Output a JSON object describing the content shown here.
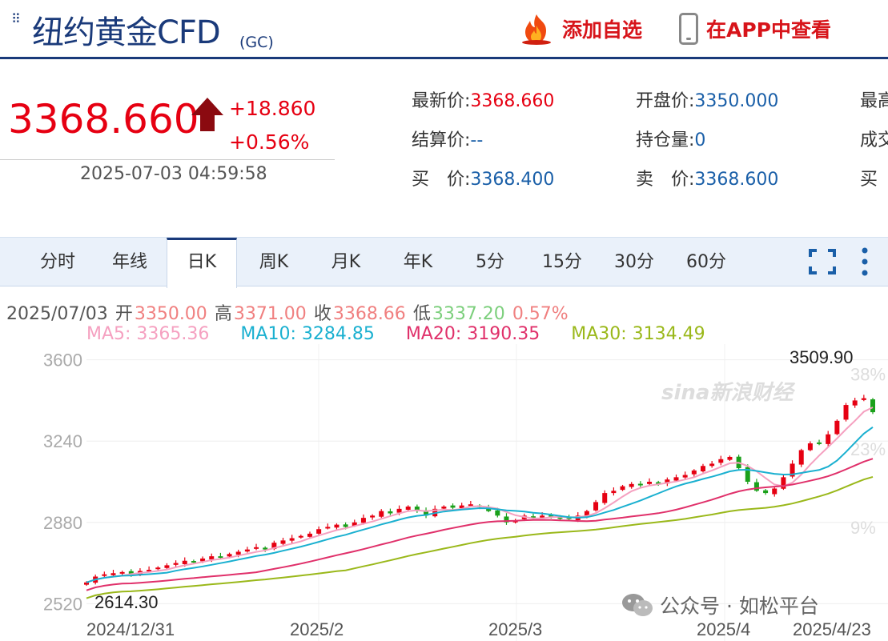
{
  "header": {
    "title": "纽约黄金CFD",
    "title_sub": "(GC)",
    "fav_label": "添加自选",
    "app_label": "在APP中查看"
  },
  "quote": {
    "price": "3368.660",
    "change": "+18.860",
    "change_pct": "+0.56%",
    "timestamp": "2025-07-03 04:59:58",
    "fields": [
      {
        "label": "最新价:",
        "value": "3368.660",
        "red": true
      },
      {
        "label": "开盘价:",
        "value": "3350.000",
        "red": false
      },
      {
        "label": "最高",
        "value": "",
        "red": false
      },
      {
        "label": "结算价:",
        "value": "--",
        "red": false
      },
      {
        "label": "持仓量:",
        "value": "0",
        "red": false
      },
      {
        "label": "成交",
        "value": "",
        "red": false
      },
      {
        "label": "买　价:",
        "value": "3368.400",
        "red": false
      },
      {
        "label": "卖　价:",
        "value": "3368.600",
        "red": false
      },
      {
        "label": "买",
        "value": "",
        "red": false
      }
    ]
  },
  "tabs": [
    "分时",
    "年线",
    "日K",
    "周K",
    "月K",
    "年K",
    "5分",
    "15分",
    "30分",
    "60分"
  ],
  "active_tab": 2,
  "ohlc": {
    "date": "2025/07/03",
    "open_label": "开",
    "open": "3350.00",
    "high_label": "高",
    "high": "3371.00",
    "close_label": "收",
    "close": "3368.66",
    "low_label": "低",
    "low": "3337.20",
    "pct": "0.57%"
  },
  "ma": {
    "ma5": "MA5: 3365.36",
    "ma10": "MA10: 3284.85",
    "ma20": "MA20: 3190.35",
    "ma30": "MA30: 3134.49"
  },
  "watermark": "sina新浪财经",
  "wechat": "公众号 · 如松平台",
  "colors": {
    "up": "#e60012",
    "down": "#1aa01a",
    "ma5": "#f5a0c0",
    "ma10": "#1ab0d0",
    "ma20": "#e0306a",
    "ma30": "#9ab81a",
    "brand": "#1a3a7a"
  },
  "chart_data": {
    "type": "candlestick",
    "x_ticks": [
      "2024/12/31",
      "2025/2",
      "2025/3",
      "2025/4",
      "2025/4/23"
    ],
    "y_ticks": [
      2520,
      2880,
      3240,
      3600
    ],
    "y_ticks_right": [
      "9%",
      "23%",
      "38%"
    ],
    "ylim": [
      2500,
      3620
    ],
    "max_label": "3509.90",
    "min_label": "2614.30",
    "closes": [
      2614,
      2640,
      2650,
      2655,
      2660,
      2650,
      2665,
      2670,
      2680,
      2690,
      2700,
      2710,
      2705,
      2720,
      2730,
      2725,
      2740,
      2750,
      2760,
      2770,
      2760,
      2790,
      2800,
      2810,
      2820,
      2830,
      2850,
      2860,
      2870,
      2860,
      2880,
      2900,
      2910,
      2930,
      2920,
      2940,
      2950,
      2930,
      2910,
      2940,
      2950,
      2945,
      2955,
      2960,
      2950,
      2930,
      2910,
      2880,
      2890,
      2910,
      2900,
      2910,
      2905,
      2900,
      2895,
      2910,
      2930,
      2970,
      3010,
      3020,
      3040,
      3050,
      3045,
      3060,
      3050,
      3070,
      3080,
      3090,
      3110,
      3130,
      3140,
      3160,
      3170,
      3120,
      3060,
      3020,
      3010,
      3030,
      3080,
      3140,
      3200,
      3230,
      3230,
      3270,
      3330,
      3400,
      3420,
      3430,
      3368
    ]
  }
}
